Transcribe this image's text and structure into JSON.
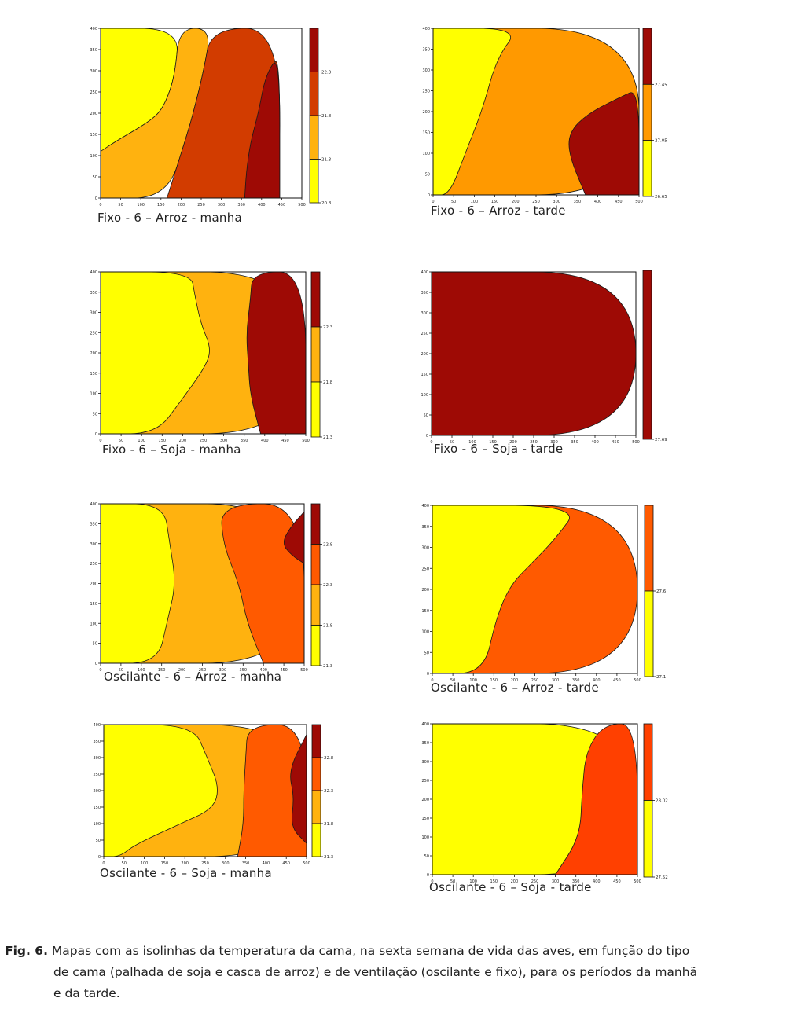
{
  "palette": {
    "yellow": "#ffff00",
    "orange_light": "#ffb20f",
    "orange": "#ff9900",
    "orange_red": "#ff5a00",
    "red_orange": "#d23c00",
    "dark_red": "#9e0a05"
  },
  "chart_data": [
    {
      "type": "contour",
      "label": "Fixo - 6 – Arroz - manha",
      "xlim": [
        0,
        500
      ],
      "ylim": [
        0,
        400
      ],
      "x_ticks": [
        "0",
        "50",
        "100",
        "150",
        "200",
        "250",
        "300",
        "350",
        "400",
        "450",
        "500"
      ],
      "y_ticks": [
        "0",
        "50",
        "100",
        "150",
        "200",
        "250",
        "300",
        "350",
        "400"
      ],
      "colorbar_ticks": [
        "20.8",
        "21.3",
        "21.8",
        "22.3"
      ],
      "colorbar_levels": [
        20.8,
        21.3,
        21.8,
        22.3
      ],
      "regions": [
        {
          "fill": "#ffff00",
          "points": [
            [
              0,
              0
            ],
            [
              0,
              110
            ],
            [
              40,
              135
            ],
            [
              130,
              185
            ],
            [
              160,
              220
            ],
            [
              185,
              290
            ],
            [
              195,
              400
            ],
            [
              0,
              400
            ]
          ]
        },
        {
          "fill": "#ffb20f",
          "points": [
            [
              0,
              0
            ],
            [
              165,
              0
            ],
            [
              215,
              150
            ],
            [
              230,
              200
            ],
            [
              255,
              295
            ],
            [
              275,
              400
            ],
            [
              195,
              400
            ],
            [
              185,
              290
            ],
            [
              160,
              220
            ],
            [
              130,
              185
            ],
            [
              40,
              135
            ],
            [
              0,
              110
            ]
          ]
        },
        {
          "fill": "#d23c00",
          "points": [
            [
              165,
              0
            ],
            [
              445,
              0
            ],
            [
              445,
              340
            ],
            [
              420,
              300
            ],
            [
              395,
              200
            ],
            [
              380,
              140
            ],
            [
              365,
              50
            ],
            [
              358,
              0
            ],
            [
              358,
              0
            ]
          ]
        },
        {
          "fill": "#d23c00",
          "points": [
            [
              165,
              0
            ],
            [
              215,
              150
            ],
            [
              230,
              200
            ],
            [
              255,
              295
            ],
            [
              275,
              400
            ],
            [
              445,
              400
            ],
            [
              445,
              0
            ]
          ]
        },
        {
          "fill": "#9e0a05",
          "points": [
            [
              358,
              0
            ],
            [
              362,
              60
            ],
            [
              372,
              130
            ],
            [
              392,
              200
            ],
            [
              410,
              290
            ],
            [
              445,
              340
            ],
            [
              445,
              0
            ]
          ]
        }
      ]
    },
    {
      "type": "contour",
      "label": "Fixo - 6 – Arroz - tarde",
      "xlim": [
        0,
        500
      ],
      "ylim": [
        0,
        400
      ],
      "x_ticks": [
        "0",
        "50",
        "100",
        "150",
        "200",
        "250",
        "300",
        "350",
        "400",
        "450",
        "500"
      ],
      "y_ticks": [
        "0",
        "50",
        "100",
        "150",
        "200",
        "250",
        "300",
        "350",
        "400"
      ],
      "colorbar_ticks": [
        "26.65",
        "27.05",
        "27.45"
      ],
      "colorbar_levels": [
        26.65,
        27.05,
        27.45
      ],
      "regions": [
        {
          "fill": "#ff9900",
          "points": [
            [
              0,
              0
            ],
            [
              500,
              0
            ],
            [
              500,
              400
            ],
            [
              0,
              400
            ]
          ]
        },
        {
          "fill": "#ffff00",
          "points": [
            [
              0,
              0
            ],
            [
              40,
              0
            ],
            [
              80,
              105
            ],
            [
              120,
              205
            ],
            [
              155,
              330
            ],
            [
              210,
              400
            ],
            [
              0,
              400
            ]
          ]
        },
        {
          "fill": "#9e0a05",
          "points": [
            [
              370,
              0
            ],
            [
              330,
              95
            ],
            [
              330,
              150
            ],
            [
              375,
              195
            ],
            [
              455,
              235
            ],
            [
              500,
              255
            ],
            [
              500,
              0
            ]
          ]
        }
      ]
    },
    {
      "type": "contour",
      "label": "Fixo - 6 – Soja - manha",
      "xlim": [
        0,
        500
      ],
      "ylim": [
        0,
        400
      ],
      "x_ticks": [
        "0",
        "50",
        "100",
        "150",
        "200",
        "250",
        "300",
        "350",
        "400",
        "450",
        "500"
      ],
      "y_ticks": [
        "0",
        "50",
        "100",
        "150",
        "200",
        "250",
        "300",
        "350",
        "400"
      ],
      "colorbar_ticks": [
        "21.3",
        "21.8",
        "22.3"
      ],
      "colorbar_levels": [
        21.3,
        21.8,
        22.3
      ],
      "regions": [
        {
          "fill": "#ffb20f",
          "points": [
            [
              0,
              0
            ],
            [
              500,
              0
            ],
            [
              500,
              400
            ],
            [
              0,
              400
            ]
          ]
        },
        {
          "fill": "#ffff00",
          "points": [
            [
              0,
              0
            ],
            [
              135,
              0
            ],
            [
              195,
              80
            ],
            [
              255,
              165
            ],
            [
              270,
              210
            ],
            [
              245,
              270
            ],
            [
              230,
              340
            ],
            [
              220,
              400
            ],
            [
              0,
              400
            ]
          ]
        },
        {
          "fill": "#9e0a05",
          "points": [
            [
              390,
              0
            ],
            [
              365,
              95
            ],
            [
              360,
              170
            ],
            [
              355,
              250
            ],
            [
              365,
              330
            ],
            [
              370,
              400
            ],
            [
              500,
              400
            ],
            [
              500,
              0
            ]
          ]
        }
      ]
    },
    {
      "type": "contour",
      "label": "Fixo - 6 – Soja - tarde",
      "xlim": [
        0,
        500
      ],
      "ylim": [
        0,
        400
      ],
      "x_ticks": [
        "0",
        "50",
        "100",
        "150",
        "200",
        "250",
        "300",
        "350",
        "400",
        "450",
        "500"
      ],
      "y_ticks": [
        "0",
        "50",
        "100",
        "150",
        "200",
        "250",
        "300",
        "350",
        "400"
      ],
      "colorbar_ticks": [
        "27.69"
      ],
      "colorbar_levels": [
        27.69
      ],
      "regions": [
        {
          "fill": "#9e0a05",
          "points": [
            [
              0,
              0
            ],
            [
              500,
              0
            ],
            [
              500,
              400
            ],
            [
              0,
              400
            ]
          ]
        }
      ]
    },
    {
      "type": "contour",
      "label": "Oscilante - 6 – Arroz - manha",
      "xlim": [
        0,
        500
      ],
      "ylim": [
        0,
        400
      ],
      "x_ticks": [
        "0",
        "50",
        "100",
        "150",
        "200",
        "250",
        "300",
        "350",
        "400",
        "450",
        "500"
      ],
      "y_ticks": [
        "0",
        "50",
        "100",
        "150",
        "200",
        "250",
        "300",
        "350",
        "400"
      ],
      "colorbar_ticks": [
        "21.3",
        "21.8",
        "22.3",
        "22.8"
      ],
      "colorbar_levels": [
        21.3,
        21.8,
        22.3,
        22.8
      ],
      "regions": [
        {
          "fill": "#ffb20f",
          "points": [
            [
              0,
              0
            ],
            [
              500,
              0
            ],
            [
              500,
              400
            ],
            [
              0,
              400
            ]
          ]
        },
        {
          "fill": "#ffff00",
          "points": [
            [
              0,
              0
            ],
            [
              140,
              0
            ],
            [
              165,
              110
            ],
            [
              185,
              200
            ],
            [
              170,
              300
            ],
            [
              155,
              400
            ],
            [
              0,
              400
            ]
          ]
        },
        {
          "fill": "#ff5a00",
          "points": [
            [
              400,
              0
            ],
            [
              360,
              100
            ],
            [
              340,
              200
            ],
            [
              300,
              300
            ],
            [
              295,
              400
            ],
            [
              500,
              400
            ],
            [
              500,
              0
            ]
          ]
        },
        {
          "fill": "#9e0a05",
          "points": [
            [
              500,
              250
            ],
            [
              470,
              270
            ],
            [
              445,
              300
            ],
            [
              465,
              340
            ],
            [
              500,
              380
            ]
          ]
        }
      ]
    },
    {
      "type": "contour",
      "label": "Oscilante - 6 – Arroz - tarde",
      "xlim": [
        0,
        500
      ],
      "ylim": [
        0,
        400
      ],
      "x_ticks": [
        "0",
        "50",
        "100",
        "150",
        "200",
        "250",
        "300",
        "350",
        "400",
        "450",
        "500"
      ],
      "y_ticks": [
        "0",
        "50",
        "100",
        "150",
        "200",
        "250",
        "300",
        "350",
        "400"
      ],
      "colorbar_ticks": [
        "27.1",
        "27.6"
      ],
      "colorbar_levels": [
        27.1,
        27.6
      ],
      "regions": [
        {
          "fill": "#ff5a00",
          "points": [
            [
              0,
              0
            ],
            [
              500,
              0
            ],
            [
              500,
              400
            ],
            [
              0,
              400
            ]
          ]
        },
        {
          "fill": "#ffff00",
          "points": [
            [
              0,
              0
            ],
            [
              125,
              0
            ],
            [
              155,
              130
            ],
            [
              190,
              210
            ],
            [
              240,
              260
            ],
            [
              300,
              320
            ],
            [
              360,
              400
            ],
            [
              0,
              400
            ]
          ]
        }
      ]
    },
    {
      "type": "contour",
      "label": "Oscilante - 6 – Soja - manha",
      "xlim": [
        0,
        500
      ],
      "ylim": [
        0,
        400
      ],
      "x_ticks": [
        "0",
        "50",
        "100",
        "150",
        "200",
        "250",
        "300",
        "350",
        "400",
        "450",
        "500"
      ],
      "y_ticks": [
        "0",
        "50",
        "100",
        "150",
        "200",
        "250",
        "300",
        "350",
        "400"
      ],
      "colorbar_ticks": [
        "21.3",
        "21.8",
        "22.3",
        "22.8"
      ],
      "colorbar_levels": [
        21.3,
        21.8,
        22.3,
        22.8
      ],
      "regions": [
        {
          "fill": "#ffb20f",
          "points": [
            [
              0,
              0
            ],
            [
              500,
              0
            ],
            [
              500,
              400
            ],
            [
              0,
              400
            ]
          ]
        },
        {
          "fill": "#ffff00",
          "points": [
            [
              0,
              0
            ],
            [
              40,
              0
            ],
            [
              75,
              35
            ],
            [
              190,
              100
            ],
            [
              270,
              145
            ],
            [
              285,
              210
            ],
            [
              255,
              300
            ],
            [
              220,
              400
            ],
            [
              0,
              400
            ]
          ]
        },
        {
          "fill": "#ff5a00",
          "points": [
            [
              330,
              0
            ],
            [
              345,
              100
            ],
            [
              345,
              200
            ],
            [
              350,
              300
            ],
            [
              355,
              400
            ],
            [
              500,
              400
            ],
            [
              500,
              0
            ]
          ]
        },
        {
          "fill": "#9e0a05",
          "points": [
            [
              500,
              40
            ],
            [
              460,
              90
            ],
            [
              470,
              180
            ],
            [
              455,
              260
            ],
            [
              500,
              370
            ]
          ]
        }
      ]
    },
    {
      "type": "contour",
      "label": "Oscilante - 6 – Soja - tarde",
      "xlim": [
        0,
        500
      ],
      "ylim": [
        0,
        400
      ],
      "x_ticks": [
        "0",
        "50",
        "100",
        "150",
        "200",
        "250",
        "300",
        "350",
        "400",
        "450",
        "500"
      ],
      "y_ticks": [
        "0",
        "50",
        "100",
        "150",
        "200",
        "250",
        "300",
        "350",
        "400"
      ],
      "colorbar_ticks": [
        "27.52",
        "28.02"
      ],
      "colorbar_levels": [
        27.52,
        28.02
      ],
      "regions": [
        {
          "fill": "#ffff00",
          "points": [
            [
              0,
              0
            ],
            [
              500,
              0
            ],
            [
              500,
              400
            ],
            [
              0,
              400
            ]
          ]
        },
        {
          "fill": "#ff4000",
          "points": [
            [
              300,
              0
            ],
            [
              360,
              100
            ],
            [
              365,
              220
            ],
            [
              375,
              330
            ],
            [
              420,
              400
            ],
            [
              500,
              400
            ],
            [
              500,
              0
            ]
          ]
        }
      ]
    }
  ],
  "caption": {
    "fig_label": "Fig. 6.",
    "text_line1": "Mapas com as isolinhas da temperatura da cama, na sexta semana de vida das aves, em função do tipo",
    "text_line2": "de cama (palhada de soja e casca de arroz) e de ventilação (oscilante e fixo), para os períodos da manhã",
    "text_line3": "e da tarde."
  }
}
